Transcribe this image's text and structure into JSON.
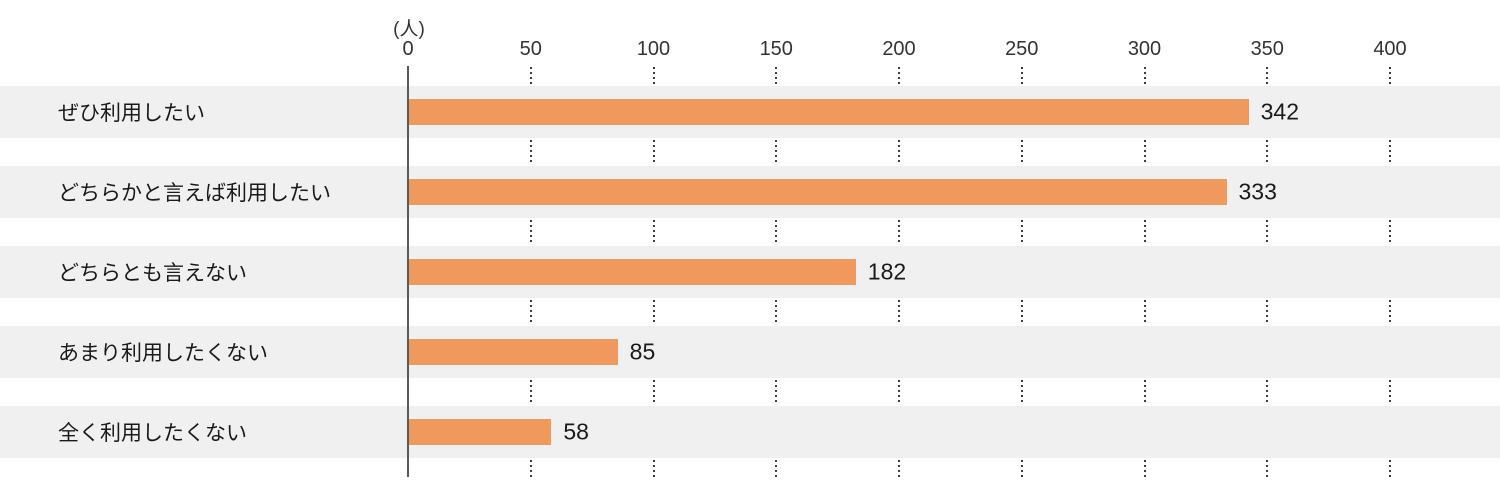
{
  "chart_data": {
    "type": "bar",
    "orientation": "horizontal",
    "title": "",
    "unit_label": "(人)",
    "categories": [
      "ぜひ利用したい",
      "どちらかと言えば利用したい",
      "どちらとも言えない",
      "あまり利用したくない",
      "全く利用したくない"
    ],
    "values": [
      342,
      333,
      182,
      85,
      58
    ],
    "value_labels": [
      "342",
      "333",
      "182",
      "85",
      "58"
    ],
    "xlim": [
      0,
      400
    ],
    "tick_step": 50,
    "ticks": [
      0,
      50,
      100,
      150,
      200,
      250,
      300,
      350,
      400
    ],
    "grid": "dotted-vertical-in-row-gaps",
    "legend": "none",
    "colors": {
      "bar": "#F0995E",
      "row_band": "#F0F0F0",
      "axis_line": "#5a5a5a",
      "grid_dots": "#3d3d3d",
      "text": "#1A1A1A",
      "tick_text": "#333333",
      "background": "#FFFFFF"
    }
  }
}
